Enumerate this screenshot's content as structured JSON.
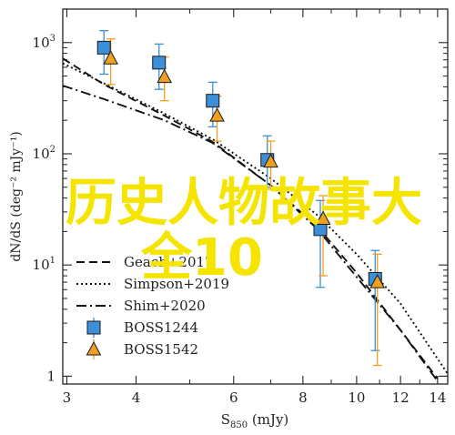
{
  "chart_data": {
    "type": "scatter",
    "xlabel_main": "S",
    "xlabel_sub": "850",
    "xlabel_unit": " (mJy)",
    "ylabel": "dN/dS (deg⁻² mJy⁻¹)",
    "x_scale": "log",
    "y_scale": "log",
    "xlim": [
      2.95,
      14.6
    ],
    "ylim": [
      0.85,
      2000
    ],
    "x_ticks": [
      {
        "value": 3,
        "label": "3"
      },
      {
        "value": 4,
        "label": "4"
      },
      {
        "value": 6,
        "label": "6"
      },
      {
        "value": 8,
        "label": "8"
      },
      {
        "value": 10,
        "label": "10"
      },
      {
        "value": 12,
        "label": "12"
      },
      {
        "value": 14,
        "label": "14"
      }
    ],
    "y_ticks": [
      {
        "value": 1,
        "label": "1",
        "sup": ""
      },
      {
        "value": 10,
        "label": "10",
        "sup": "1"
      },
      {
        "value": 100,
        "label": "10",
        "sup": "2"
      },
      {
        "value": 1000,
        "label": "10",
        "sup": "3"
      }
    ],
    "models": [
      {
        "name": "Geach+2017",
        "dash": "9,5",
        "x": [
          2.95,
          3.5,
          4.5,
          5.5,
          7,
          8.5,
          10,
          12,
          14
        ],
        "y": [
          720,
          420,
          220,
          128,
          52,
          22,
          8.5,
          2.6,
          0.95
        ]
      },
      {
        "name": "Simpson+2019",
        "dash": "2,3",
        "x": [
          2.95,
          3.5,
          4.5,
          5.5,
          7,
          8.5,
          10,
          12,
          14.6
        ],
        "y": [
          650,
          430,
          230,
          135,
          60,
          28,
          12.5,
          4.5,
          1.05
        ]
      },
      {
        "name": "Shim+2020",
        "dash": "11,4,2,4",
        "x": [
          2.95,
          3.5,
          4.5,
          5.5,
          7,
          8.5,
          10,
          12,
          14
        ],
        "y": [
          410,
          310,
          200,
          125,
          52,
          21,
          7.8,
          2.6,
          0.9
        ]
      }
    ],
    "series": [
      {
        "name": "BOSS1244",
        "marker": "square",
        "color": "#3a8fd8",
        "points": [
          {
            "x": 3.5,
            "y": 900,
            "lo": 520,
            "hi": 1280
          },
          {
            "x": 4.4,
            "y": 660,
            "lo": 380,
            "hi": 970
          },
          {
            "x": 5.5,
            "y": 300,
            "lo": 175,
            "hi": 440
          },
          {
            "x": 6.9,
            "y": 88,
            "lo": 50,
            "hi": 145
          },
          {
            "x": 8.6,
            "y": 21,
            "lo": 6.3,
            "hi": 38
          },
          {
            "x": 10.8,
            "y": 7.5,
            "lo": 1.7,
            "hi": 13.5
          }
        ]
      },
      {
        "name": "BOSS1542",
        "marker": "triangle",
        "color": "#f0a020",
        "points": [
          {
            "x": 3.6,
            "y": 720,
            "lo": 420,
            "hi": 1080
          },
          {
            "x": 4.5,
            "y": 490,
            "lo": 300,
            "hi": 740
          },
          {
            "x": 5.6,
            "y": 220,
            "lo": 130,
            "hi": 330
          },
          {
            "x": 7.0,
            "y": 85,
            "lo": 48,
            "hi": 130
          },
          {
            "x": 8.7,
            "y": 26,
            "lo": 8,
            "hi": 42
          },
          {
            "x": 10.9,
            "y": 7.0,
            "lo": 1.25,
            "hi": 12.5
          }
        ]
      }
    ],
    "legend_position": "lower-left",
    "grid": false
  },
  "overlay": {
    "line1": "历史人物故事大",
    "line2": "全10"
  }
}
